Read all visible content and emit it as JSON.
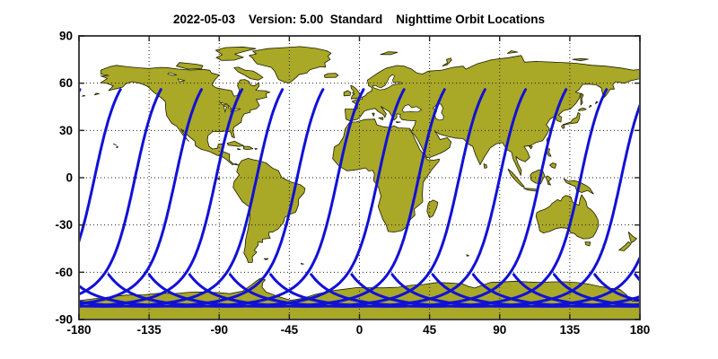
{
  "figure": {
    "title": "2022-05-03    Version: 5.00  Standard    Nighttime Orbit Locations"
  },
  "chart_data": {
    "type": "map",
    "projection": "equirectangular",
    "title": "2022-05-03    Version: 5.00  Standard    Nighttime Orbit Locations",
    "date": "2022-05-03",
    "version": "5.00",
    "mode": "Standard",
    "subject": "Nighttime Orbit Locations",
    "xlim": [
      -180,
      180
    ],
    "ylim": [
      -90,
      90
    ],
    "x_ticks": [
      -180,
      -135,
      -90,
      -45,
      0,
      45,
      90,
      135,
      180
    ],
    "y_ticks": [
      90,
      60,
      30,
      0,
      -30,
      -60,
      -90
    ],
    "grid": "dotted",
    "colors": {
      "land": "#A9A827",
      "ocean": "#FFFFFF",
      "coast": "#1C1C00",
      "track": "#1111D6",
      "grid": "#222222",
      "frame": "#444444",
      "text": "#000000"
    },
    "orbit_tracks": {
      "style": "night-side ground tracks, descending southwest",
      "equator_crossing_spacing_deg": 26,
      "first_equator_crossing_lon_deg": -170,
      "tracks_on_map": 14,
      "inclination_deg": 98.3,
      "max_south_latitude_deg": -81.7,
      "north_cutoff_lat_deg": 56,
      "south_cutoff_lat_deg": -60
    }
  }
}
